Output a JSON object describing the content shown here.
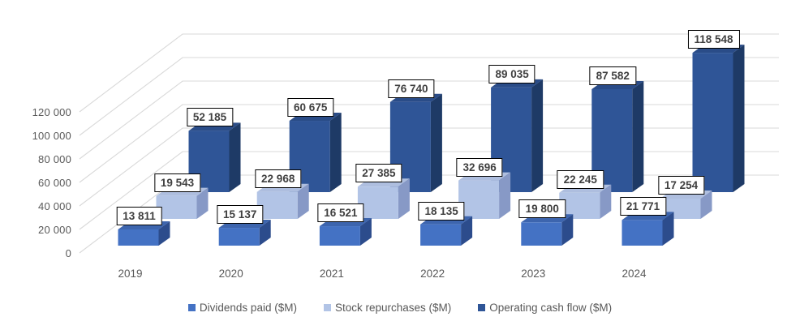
{
  "chart_data": {
    "type": "bar",
    "variant": "3d-column",
    "title": "",
    "categories": [
      "2019",
      "2020",
      "2021",
      "2022",
      "2023",
      "2024"
    ],
    "series": [
      {
        "name": "Dividends paid ($M)",
        "values": [
          13811,
          15137,
          16521,
          18135,
          19800,
          21771
        ],
        "labels": [
          "13 811",
          "15 137",
          "16 521",
          "18 135",
          "19 800",
          "21 771"
        ],
        "color_front": "#4472C4",
        "color_top": "#3D65AE",
        "color_side": "#2C4C8C"
      },
      {
        "name": "Stock repurchases ($M)",
        "values": [
          19543,
          22968,
          27385,
          32696,
          22245,
          17254
        ],
        "labels": [
          "19 543",
          "22 968",
          "27 385",
          "32 696",
          "22 245",
          "17 254"
        ],
        "color_front": "#B2C4E6",
        "color_top": "#AEBEDF",
        "color_side": "#8799C6"
      },
      {
        "name": "Operating cash flow ($M)",
        "values": [
          52185,
          60675,
          76740,
          89035,
          87582,
          118548
        ],
        "labels": [
          "52 185",
          "60 675",
          "76 740",
          "89 035",
          "87 582",
          "118 548"
        ],
        "color_front": "#2F5597",
        "color_top": "#2A4C88",
        "color_side": "#1E3A66"
      }
    ],
    "y_axis": {
      "tick_labels": [
        "0",
        "20 000",
        "40 000",
        "60 000",
        "80 000",
        "100 000",
        "120 000"
      ],
      "tick_values": [
        0,
        20000,
        40000,
        60000,
        80000,
        100000,
        120000
      ],
      "min": 0,
      "max": 120000,
      "tick_step": 20000
    },
    "legend_position": "bottom",
    "grid": true,
    "colors": {
      "gridline": "#D9D9D9",
      "axis_text": "#595959",
      "data_label_text": "#3F3F3F",
      "data_label_border": "#000000",
      "data_label_bg": "#FFFFFF",
      "background": "#FFFFFF"
    }
  }
}
